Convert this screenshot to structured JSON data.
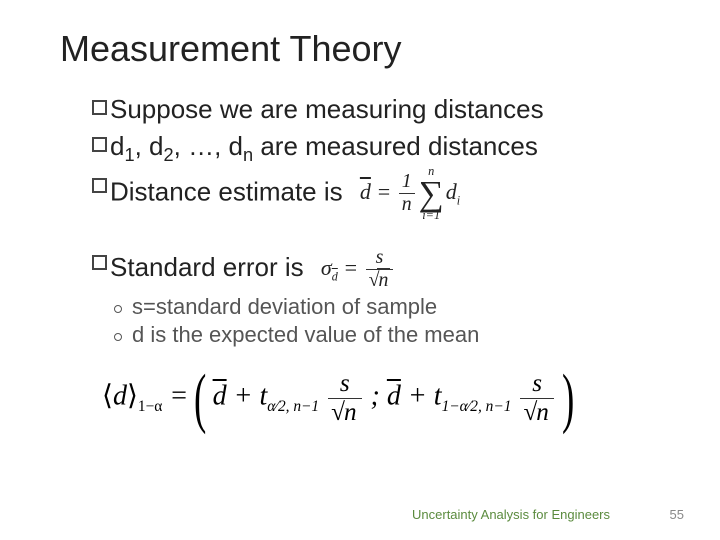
{
  "title": "Measurement Theory",
  "bullets": {
    "b1": "Suppose we are measuring distances",
    "b2": "d",
    "b2a": "1",
    "b2b": ", d",
    "b2c": "2",
    "b2d": ", …, d",
    "b2e": "n",
    "b2f": " are measured distances",
    "b3": "Distance estimate is",
    "b4": "Standard error is"
  },
  "sub": {
    "s1": "s=standard deviation of sample",
    "s2": "d is the expected value of the mean"
  },
  "formula": {
    "dbar": "d",
    "eq": " = ",
    "one": "1",
    "n": "n",
    "d": "d",
    "i": "i",
    "i1": "i=1",
    "sigma": "σ",
    "sigmasub": "d",
    "s": "s",
    "sqrtn": "n",
    "angled_sub": "1−α",
    "t": "t",
    "alpha2a": "α⁄2, n−1",
    "alpha2b": "1−α⁄2, n−1",
    "plus": " + ",
    "semi": ";  ",
    "open": "⟨",
    "close": "⟩"
  },
  "footer": {
    "course": "Uncertainty Analysis for Engineers",
    "page": "55"
  },
  "colors": {
    "title": "#222222",
    "body": "#222222",
    "sub": "#555555",
    "footer_course": "#5b8b3e",
    "footer_page": "#888888"
  }
}
